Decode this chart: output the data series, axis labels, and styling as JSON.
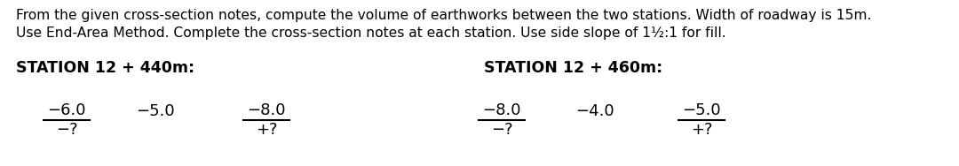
{
  "bg_color": "#ffffff",
  "text_color": "#000000",
  "line1": "From the given cross-section notes, compute the volume of earthworks between the two stations. Width of roadway is 15m.",
  "line2": "Use End-Area Method. Complete the cross-section notes at each station. Use side slope of 1½:1 for fill.",
  "station1_label": "STATION 12 + 440m:",
  "station2_label": "STATION 12 + 460m:",
  "station1": {
    "left_top": "−6.0",
    "left_bot": "−?",
    "center": "−5.0",
    "right_top": "−8.0",
    "right_bot": "+?"
  },
  "station2": {
    "left_top": "−8.0",
    "left_bot": "−?",
    "center": "−4.0",
    "right_top": "−5.0",
    "right_bot": "+?"
  },
  "font_size_para": 11.2,
  "font_size_label": 12.5,
  "font_size_notes": 13.0
}
